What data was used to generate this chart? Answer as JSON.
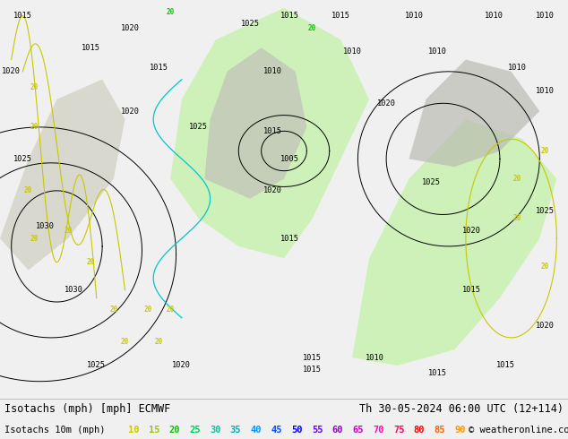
{
  "title_left": "Isotachs (mph) [mph] ECMWF",
  "title_right": "Th 30-05-2024 06:00 UTC (12+114)",
  "legend_label": "Isotachs 10m (mph)",
  "legend_values": [
    10,
    15,
    20,
    25,
    30,
    35,
    40,
    45,
    50,
    55,
    60,
    65,
    70,
    75,
    80,
    85,
    90
  ],
  "legend_colors": [
    "#c8c800",
    "#96c800",
    "#00c800",
    "#00c864",
    "#00c8a0",
    "#00b4b4",
    "#0096ff",
    "#0050ff",
    "#0000ff",
    "#6400ff",
    "#9600c8",
    "#c800c8",
    "#ff00c8",
    "#ff0064",
    "#ff0000",
    "#ff6400",
    "#ff9600"
  ],
  "copyright": "© weatheronline.co.uk",
  "map_bg": "#f0f0f0",
  "legend_bg": "#ffffff",
  "title_fontsize": 8.5,
  "legend_fontsize": 7.5,
  "figsize": [
    6.34,
    4.9
  ],
  "dpi": 100
}
